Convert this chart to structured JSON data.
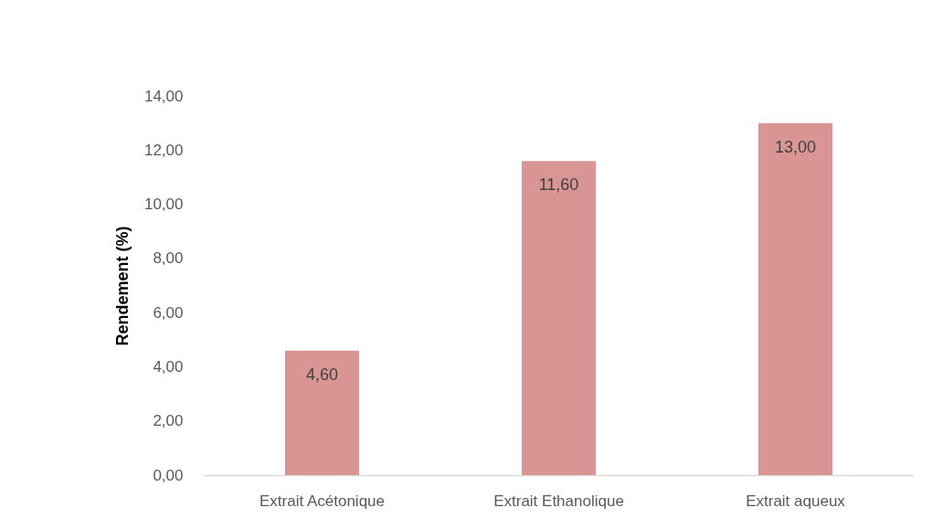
{
  "chart_data": {
    "type": "bar",
    "ylabel": "Rendement (%)",
    "categories": [
      "Extrait Acétonique",
      "Extrait Ethanolique",
      "Extrait aqueux"
    ],
    "values": [
      4.6,
      11.6,
      13.0
    ],
    "value_labels": [
      "4,60",
      "11,60",
      "13,00"
    ],
    "color": "#d99594",
    "ylim": [
      0,
      14
    ],
    "yticks": [
      {
        "value": 0,
        "label": "0,00"
      },
      {
        "value": 2,
        "label": "2,00"
      },
      {
        "value": 4,
        "label": "4,00"
      },
      {
        "value": 6,
        "label": "6,00"
      },
      {
        "value": 8,
        "label": "8,00"
      },
      {
        "value": 10,
        "label": "10,00"
      },
      {
        "value": 12,
        "label": "12,00"
      },
      {
        "value": 14,
        "label": "14,00"
      }
    ]
  }
}
